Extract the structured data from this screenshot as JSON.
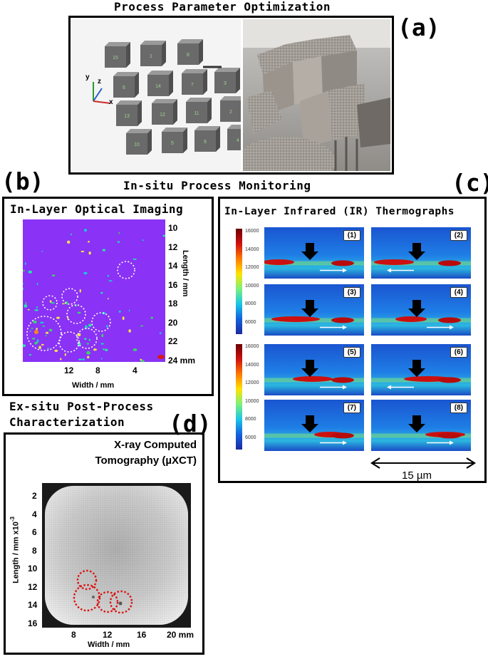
{
  "panel_a": {
    "title": "Process Parameter Optimization",
    "letter": "(a)",
    "axis_labels": [
      "y",
      "z",
      "x"
    ],
    "cube_labels": [
      "15",
      "1",
      "8",
      "6",
      "14",
      "7",
      "3",
      "13",
      "12",
      "11",
      "2",
      "10",
      "5",
      "9",
      "4"
    ]
  },
  "section_title": "In-situ Process Monitoring",
  "panel_b": {
    "letter": "(b)",
    "title": "In-Layer Optical Imaging",
    "y_axis_label": "Length / mm",
    "x_axis_label": "Width / mm",
    "y_ticks": [
      "10",
      "12",
      "14",
      "16",
      "18",
      "20",
      "22",
      "24 mm"
    ],
    "x_ticks": [
      "12",
      "8",
      "4"
    ]
  },
  "panel_c": {
    "letter": "(c)",
    "title": "In-Layer Infrared (IR) Thermographs",
    "colorbar_ticks": [
      "16000",
      "14000",
      "12000",
      "10000",
      "8000",
      "6000"
    ],
    "tile_labels": [
      "(1)",
      "(2)",
      "(3)",
      "(4)",
      "(5)",
      "(6)",
      "(7)",
      "(8)"
    ],
    "scale_label": "15 µm"
  },
  "panel_d": {
    "heading_line1": "Ex-situ Post-Process",
    "heading_line2": "Characterization",
    "letter": "(d)",
    "title_line1": "X-ray Computed",
    "title_line2": "Tomography (µXCT)",
    "y_axis_label": "Length / mm x10",
    "y_axis_exponent": "-3",
    "x_axis_label": "Width / mm",
    "y_ticks": [
      "2",
      "4",
      "6",
      "8",
      "10",
      "12",
      "14",
      "16"
    ],
    "x_ticks": [
      "8",
      "12",
      "16",
      "20 mm"
    ]
  },
  "colors": {
    "optical_background": "#8a32f5",
    "ir_background": "#1660d8",
    "circle_dotted": "#ffffff",
    "xct_circle": "#dd1111"
  }
}
